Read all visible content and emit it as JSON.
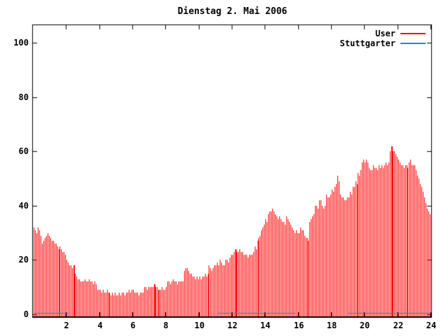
{
  "title": "Dienstag 2. Mai 2006",
  "legend": {
    "position": "top-right-inside",
    "items": [
      {
        "label": "User",
        "color": "#ee1111"
      },
      {
        "label": "Stuttgarter",
        "color": "#1d86e0"
      }
    ]
  },
  "chart_data": {
    "type": "bar",
    "subtype": "gnuplot-impulses",
    "title": "Dienstag 2. Mai 2006",
    "xlabel": "",
    "ylabel": "",
    "xlim": [
      0,
      24
    ],
    "ylim": [
      0,
      107
    ],
    "x_ticks": [
      2,
      4,
      6,
      8,
      10,
      12,
      14,
      16,
      18,
      20,
      22,
      24
    ],
    "y_ticks": [
      0,
      20,
      40,
      60,
      80,
      100
    ],
    "grid": false,
    "background": "#ffffff",
    "border_color": "#000000",
    "sample_interval_minutes": 5,
    "series": [
      {
        "name": "User",
        "style": "impulses",
        "color": "#ff0000",
        "values": [
          32,
          31,
          30,
          32,
          31,
          29,
          26,
          27,
          28,
          29,
          30,
          29,
          28,
          27,
          27,
          26,
          26,
          25,
          24,
          25,
          24,
          23,
          23,
          22,
          20,
          19,
          18,
          18,
          17,
          18,
          15,
          14,
          13,
          13,
          12,
          12,
          12,
          13,
          12,
          12,
          13,
          12,
          12,
          11,
          12,
          11,
          9,
          9,
          9,
          8,
          9,
          8,
          8,
          9,
          8,
          8,
          7,
          8,
          7,
          8,
          7,
          7,
          8,
          7,
          8,
          8,
          7,
          8,
          8,
          9,
          8,
          9,
          9,
          8,
          8,
          8,
          7,
          8,
          8,
          8,
          10,
          10,
          9,
          10,
          10,
          10,
          10,
          11,
          10,
          10,
          9,
          9,
          9,
          10,
          9,
          9,
          10,
          12,
          12,
          11,
          12,
          13,
          12,
          12,
          11,
          12,
          12,
          12,
          12,
          16,
          17,
          17,
          16,
          15,
          15,
          14,
          14,
          13,
          14,
          13,
          14,
          13,
          14,
          14,
          15,
          14,
          15,
          18,
          17,
          16,
          17,
          18,
          18,
          19,
          18,
          20,
          19,
          18,
          18,
          20,
          20,
          19,
          21,
          22,
          22,
          23,
          24,
          23,
          23,
          24,
          23,
          23,
          22,
          22,
          22,
          21,
          22,
          22,
          22,
          23,
          25,
          24,
          27,
          28,
          29,
          31,
          32,
          33,
          35,
          34,
          37,
          38,
          38,
          39,
          38,
          37,
          36,
          35,
          36,
          35,
          34,
          34,
          33,
          36,
          35,
          34,
          33,
          32,
          31,
          30,
          31,
          30,
          30,
          32,
          31,
          31,
          29,
          28,
          28,
          27,
          34,
          35,
          36,
          37,
          40,
          40,
          39,
          42,
          42,
          40,
          39,
          40,
          44,
          43,
          43,
          44,
          46,
          45,
          47,
          48,
          51,
          49,
          44,
          43,
          43,
          42,
          42,
          43,
          43,
          45,
          44,
          47,
          47,
          49,
          48,
          52,
          51,
          53,
          56,
          57,
          56,
          57,
          56,
          54,
          53,
          53,
          55,
          54,
          54,
          53,
          55,
          54,
          55,
          54,
          55,
          56,
          55,
          56,
          60,
          62,
          60,
          60,
          59,
          58,
          57,
          56,
          55,
          55,
          54,
          55,
          55,
          54,
          56,
          57,
          55,
          55,
          55,
          53,
          51,
          50,
          48,
          47,
          45,
          43,
          41,
          39,
          38,
          37
        ],
        "solid_spike_indices": [
          29,
          87,
          146,
          259
        ]
      },
      {
        "name": "Stuttgarter",
        "style": "lines",
        "color": "#1d86e0",
        "value": 0.5,
        "segments_hours": [
          [
            0,
            2.05
          ],
          [
            11.08,
            15.75
          ],
          [
            18.95,
            24
          ]
        ]
      }
    ]
  }
}
